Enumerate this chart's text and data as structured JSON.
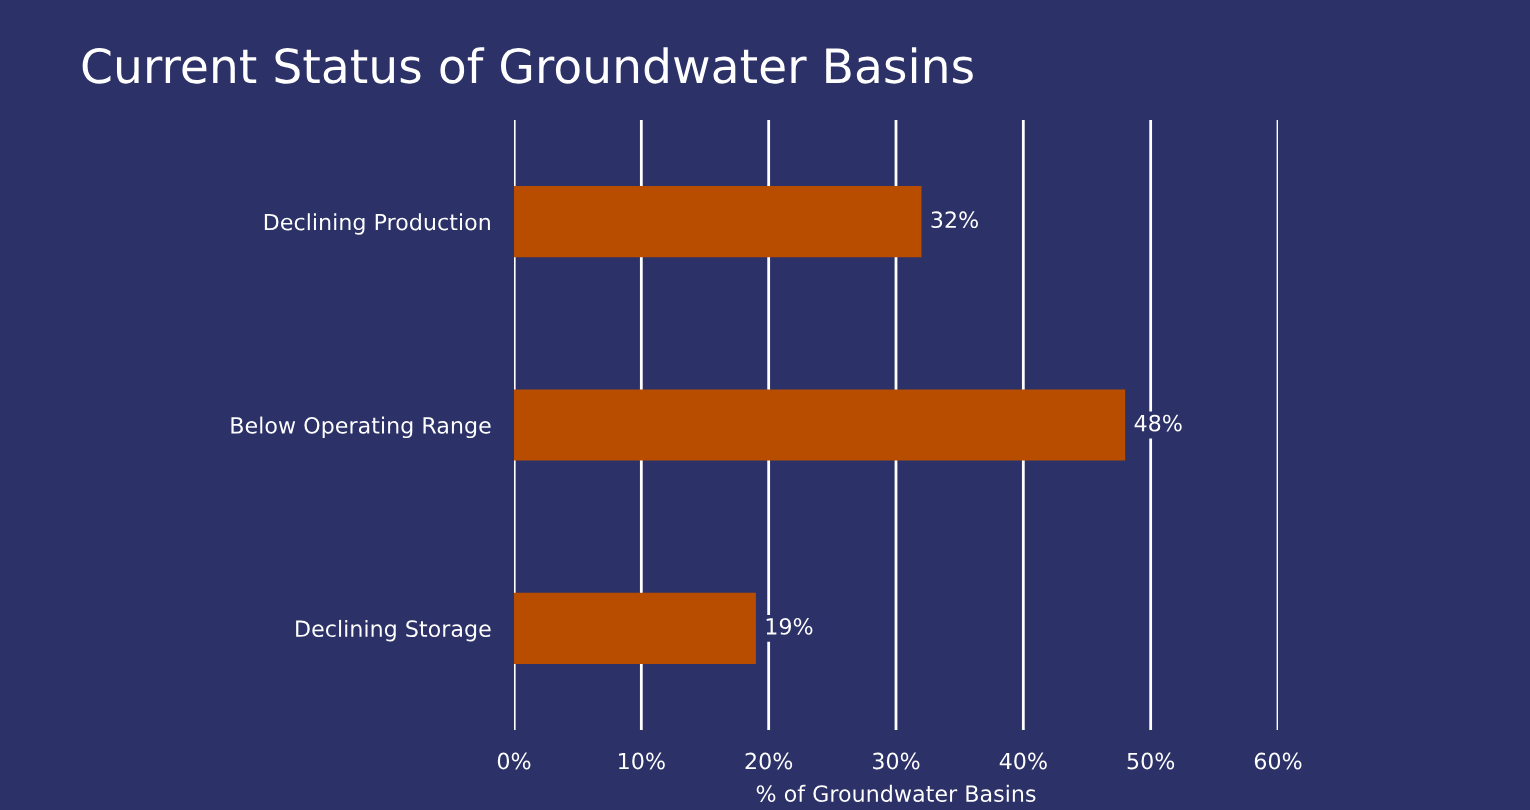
{
  "chart_data": {
    "type": "bar",
    "orientation": "horizontal",
    "title": "Current Status of Groundwater Basins",
    "xlabel": "% of Groundwater Basins",
    "categories": [
      "Declining Production",
      "Below Operating Range",
      "Declining Storage"
    ],
    "values": [
      32,
      48,
      19
    ],
    "value_labels": [
      "32%",
      "48%",
      "19%"
    ],
    "color": "#b84d00",
    "xlim": [
      0,
      60
    ],
    "xticks": [
      {
        "value": 0,
        "label": "0%"
      },
      {
        "value": 10,
        "label": "10%"
      },
      {
        "value": 20,
        "label": "20%"
      },
      {
        "value": 30,
        "label": "30%"
      },
      {
        "value": 40,
        "label": "40%"
      },
      {
        "value": 50,
        "label": "50%"
      },
      {
        "value": 60,
        "label": "60%"
      }
    ],
    "grid": "x",
    "legend": false
  }
}
